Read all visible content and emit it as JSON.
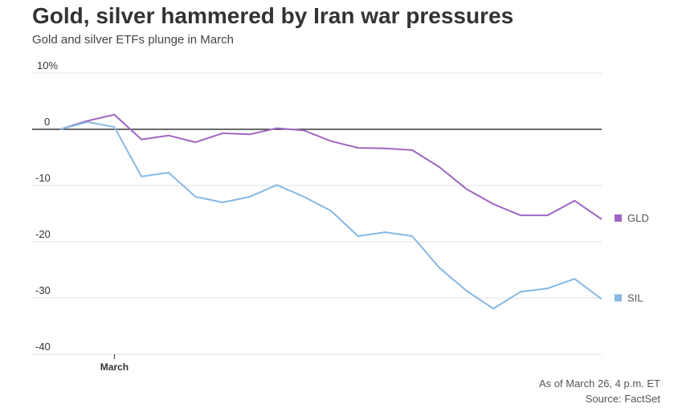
{
  "header": {
    "title": "Gold, silver hammered by Iran war pressures",
    "subtitle": "Gold and silver ETFs plunge in March"
  },
  "footer": {
    "as_of": "As of March 26, 4 p.m. ET",
    "source": "Source: FactSet"
  },
  "chart_data": {
    "type": "line",
    "title": "Gold, silver hammered by Iran war pressures",
    "xlabel": "",
    "ylabel": "",
    "ylim": [
      -40,
      10
    ],
    "y_ticks": [
      10,
      0,
      -10,
      -20,
      -30,
      -40
    ],
    "y_tick_labels": [
      "10%",
      "0",
      "-10",
      "-20",
      "-30",
      "-40"
    ],
    "x_tick_label": "March",
    "x_tick_index": 2,
    "grid": true,
    "legend": "right",
    "series": [
      {
        "name": "GLD",
        "color": "#a066c0",
        "values": [
          0,
          1.5,
          2.6,
          -1.8,
          -1.1,
          -2.3,
          -0.7,
          -0.9,
          0.2,
          -0.2,
          -2.1,
          -3.3,
          -3.4,
          -3.7,
          -6.7,
          -10.6,
          -13.3,
          -15.3,
          -15.3,
          -12.7,
          -16.0
        ]
      },
      {
        "name": "SIL",
        "color": "#86b8e3",
        "values": [
          0,
          1.3,
          0.4,
          -8.4,
          -7.7,
          -12.0,
          -13.0,
          -12.0,
          -9.9,
          -12.0,
          -14.5,
          -19.0,
          -18.3,
          -19.0,
          -24.6,
          -28.7,
          -31.9,
          -28.9,
          -28.3,
          -26.6,
          -30.2
        ]
      }
    ]
  }
}
